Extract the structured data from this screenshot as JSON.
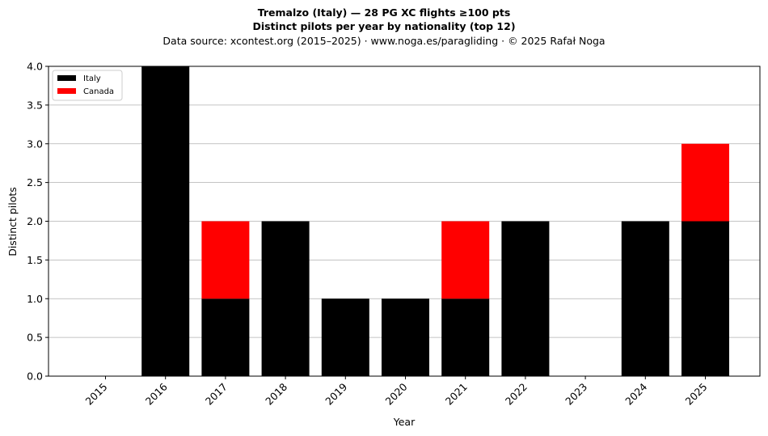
{
  "chart_data": {
    "type": "bar",
    "stacked": true,
    "title": "Tremalzo (Italy)  —  28 PG XC flights ≥100 pts",
    "subtitle": "Distinct pilots per year by nationality (top 12)",
    "source_line": "Data source: xcontest.org (2015–2025)  ·  www.noga.es/paragliding  ·  © 2025 Rafał Noga",
    "xlabel": "Year",
    "ylabel": "Distinct pilots",
    "categories": [
      "2015",
      "2016",
      "2017",
      "2018",
      "2019",
      "2020",
      "2021",
      "2022",
      "2023",
      "2024",
      "2025"
    ],
    "series": [
      {
        "name": "Italy",
        "color": "#000000",
        "values": [
          0,
          4,
          1,
          2,
          1,
          1,
          1,
          2,
          0,
          2,
          2
        ]
      },
      {
        "name": "Canada",
        "color": "#ff0000",
        "values": [
          0,
          0,
          1,
          0,
          0,
          0,
          1,
          0,
          0,
          0,
          1
        ]
      }
    ],
    "ylim": [
      0,
      4
    ],
    "yticks": [
      "0.0",
      "0.5",
      "1.0",
      "1.5",
      "2.0",
      "2.5",
      "3.0",
      "3.5",
      "4.0"
    ],
    "grid": "y",
    "legend_position": "top-left"
  }
}
